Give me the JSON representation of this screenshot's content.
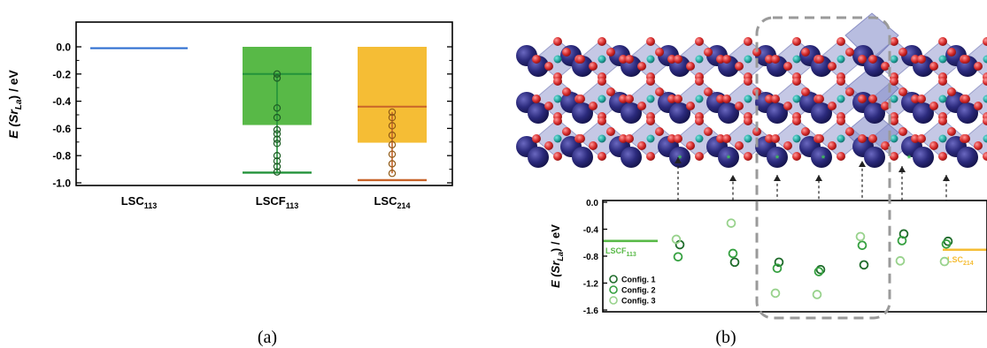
{
  "panels": {
    "a": "(a)",
    "b": "(b)"
  },
  "colors": {
    "blue": "#2f6fd0",
    "green_bar": "#58b947",
    "green_line": "#23923a",
    "orange_bar": "#f5bd35",
    "orange_line": "#c8642a",
    "config1": "#1e6b2a",
    "config2": "#35a040",
    "config3": "#98d28c",
    "atom_la": "#2b2a7c",
    "atom_o": "#d62a2a",
    "atom_co": "#23a7a0",
    "polyhedron": "#7e86c6",
    "box": "#9a9a9a"
  },
  "structure_icons": [
    "la-sr-atom-icon",
    "oxygen-atom-icon",
    "cobalt-atom-icon",
    "octahedron-icon"
  ],
  "chart_data": [
    {
      "type": "bar",
      "panel": "a",
      "ylabel": {
        "main": "E (Sr",
        "sub": "La",
        "tail": ") / eV"
      },
      "ylim": [
        -1.0,
        0.0
      ],
      "yticks": [
        0.0,
        -0.2,
        -0.4,
        -0.6,
        -0.8,
        -1.0
      ],
      "ytick_labels": [
        "0.0",
        "-0.2",
        "-0.4",
        "-0.6",
        "-0.8",
        "-1.0"
      ],
      "grid": false,
      "categories": [
        {
          "main": "LSC",
          "sub": "113"
        },
        {
          "main": "LSCF",
          "sub": "113"
        },
        {
          "main": "LSC",
          "sub": "214"
        }
      ],
      "values": [
        -0.01,
        -0.575,
        -0.705
      ],
      "averages": [
        null,
        -0.2,
        -0.44
      ],
      "minimums": [
        null,
        -0.925,
        -0.98
      ],
      "points": [
        [],
        [
          -0.2,
          -0.23,
          -0.45,
          -0.52,
          -0.61,
          -0.64,
          -0.68,
          -0.71,
          -0.8,
          -0.84,
          -0.88,
          -0.92
        ],
        [
          -0.48,
          -0.52,
          -0.58,
          -0.65,
          -0.72,
          -0.79,
          -0.86,
          -0.93
        ]
      ]
    },
    {
      "type": "scatter",
      "panel": "b",
      "ylabel": {
        "main": "E (Sr",
        "sub": "La",
        "tail": ") / eV"
      },
      "ylim": [
        -1.6,
        0.0
      ],
      "yticks": [
        0.0,
        -0.4,
        -0.8,
        -1.2,
        -1.6
      ],
      "ytick_labels": [
        "0.0",
        "-0.4",
        "-0.8",
        "-1.2",
        "-1.6"
      ],
      "grid": false,
      "legend_position": "bottom-left",
      "x": [
        1,
        2,
        3,
        4,
        5,
        6,
        7
      ],
      "series": [
        {
          "name": "Config. 1",
          "values": [
            -0.63,
            -0.89,
            -0.89,
            -1.0,
            -0.93,
            -0.47,
            -0.58
          ]
        },
        {
          "name": "Config. 2",
          "values": [
            -0.81,
            -0.76,
            -0.98,
            -1.03,
            -0.64,
            -0.57,
            -0.62
          ]
        },
        {
          "name": "Config. 3",
          "values": [
            -0.55,
            -0.31,
            -1.35,
            -1.37,
            -0.51,
            -0.87,
            -0.88
          ]
        }
      ],
      "reference_lines": [
        {
          "label": {
            "main": "LSCF",
            "sub": "113"
          },
          "value": -0.575
        },
        {
          "label": {
            "main": "LSC",
            "sub": "214"
          },
          "value": -0.705
        }
      ]
    }
  ]
}
